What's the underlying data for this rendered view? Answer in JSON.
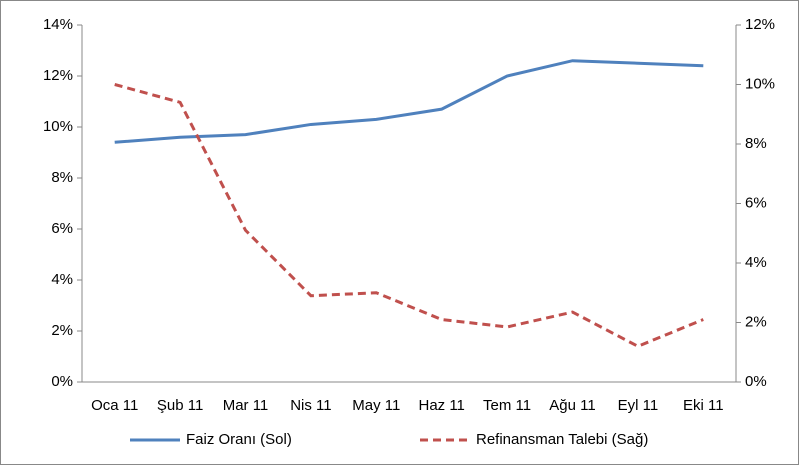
{
  "chart_data": {
    "type": "line",
    "categories": [
      "Oca 11",
      "Şub 11",
      "Mar 11",
      "Nis 11",
      "May 11",
      "Haz 11",
      "Tem 11",
      "Ağu 11",
      "Eyl 11",
      "Eki 11"
    ],
    "series": [
      {
        "name": "Faiz Oranı (Sol)",
        "color": "#4f81bd",
        "dash": false,
        "values": [
          9.4,
          9.6,
          9.7,
          10.1,
          10.3,
          10.7,
          12.0,
          12.6,
          12.5,
          12.4
        ]
      },
      {
        "name": "Refinansman Talebi (Sağ)",
        "color": "#c0504d",
        "dash": true,
        "axis": "y2",
        "values": [
          10.0,
          9.4,
          5.1,
          2.9,
          3.0,
          2.1,
          1.85,
          2.35,
          1.2,
          2.1
        ]
      }
    ],
    "ylim": [
      0,
      14
    ],
    "yticks": [
      {
        "value": 0,
        "label": "0%"
      },
      {
        "value": 2,
        "label": "2%"
      },
      {
        "value": 4,
        "label": "4%"
      },
      {
        "value": 6,
        "label": "6%"
      },
      {
        "value": 8,
        "label": "8%"
      },
      {
        "value": 10,
        "label": "10%"
      },
      {
        "value": 12,
        "label": "12%"
      },
      {
        "value": 14,
        "label": "14%"
      }
    ],
    "y2lim": [
      0,
      12
    ],
    "y2ticks": [
      {
        "value": 0,
        "label": "0%"
      },
      {
        "value": 2,
        "label": "2%"
      },
      {
        "value": 4,
        "label": "4%"
      },
      {
        "value": 6,
        "label": "6%"
      },
      {
        "value": 8,
        "label": "8%"
      },
      {
        "value": 10,
        "label": "10%"
      },
      {
        "value": 12,
        "label": "12%"
      }
    ],
    "legend": "bottom"
  }
}
